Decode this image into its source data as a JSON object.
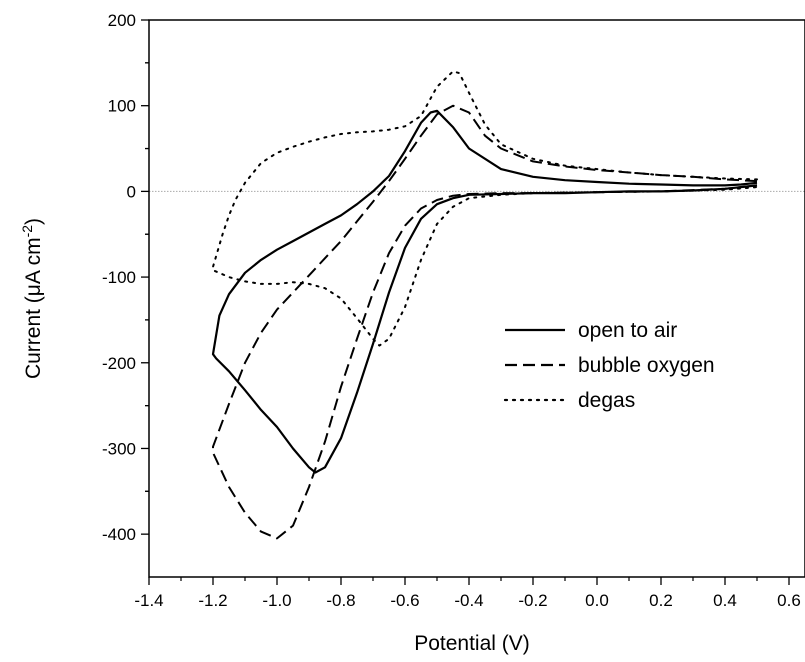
{
  "chart_data": {
    "type": "line",
    "xlabel": "Potential (V)",
    "ylabel_parts": {
      "pre": "Current (",
      "mu": "μ",
      "mid": "A cm",
      "sup": "-2",
      "post": ")"
    },
    "xlim": [
      -1.4,
      0.65
    ],
    "ylim": [
      -450,
      200
    ],
    "xticks": [
      -1.4,
      -1.2,
      -1.0,
      -0.8,
      -0.6,
      -0.4,
      -0.2,
      0.0,
      0.2,
      0.4,
      0.6
    ],
    "xtick_labels": [
      "-1.4",
      "-1.2",
      "-1.0",
      "-0.8",
      "-0.6",
      "-0.4",
      "-0.2",
      "0.0",
      "0.2",
      "0.4",
      "0.6"
    ],
    "yticks": [
      -400,
      -300,
      -200,
      -100,
      0,
      100,
      200
    ],
    "ytick_labels": [
      "-400",
      "-300",
      "-200",
      "-100",
      "0",
      "100",
      "200"
    ],
    "zero_line": true,
    "grid": false,
    "legend_position": "center-right",
    "series": [
      {
        "name": "open to air",
        "dash": "solid",
        "x": [
          0.5,
          0.45,
          0.4,
          0.3,
          0.2,
          0.1,
          0.0,
          -0.1,
          -0.2,
          -0.3,
          -0.4,
          -0.45,
          -0.5,
          -0.52,
          -0.55,
          -0.6,
          -0.65,
          -0.7,
          -0.75,
          -0.8,
          -0.85,
          -0.9,
          -0.95,
          -1.0,
          -1.05,
          -1.1,
          -1.15,
          -1.18,
          -1.2,
          -1.19,
          -1.15,
          -1.1,
          -1.05,
          -1.0,
          -0.95,
          -0.9,
          -0.88,
          -0.85,
          -0.8,
          -0.75,
          -0.7,
          -0.65,
          -0.6,
          -0.55,
          -0.5,
          -0.45,
          -0.4,
          -0.3,
          -0.2,
          -0.1,
          0.0,
          0.1,
          0.2,
          0.3,
          0.4,
          0.5
        ],
        "y": [
          10,
          8,
          7,
          7,
          8,
          9,
          11,
          13,
          17,
          26,
          50,
          75,
          94,
          92,
          80,
          47,
          18,
          0,
          -15,
          -28,
          -38,
          -48,
          -58,
          -68,
          -80,
          -95,
          -120,
          -145,
          -190,
          -195,
          -210,
          -232,
          -255,
          -275,
          -300,
          -322,
          -328,
          -322,
          -288,
          -235,
          -178,
          -118,
          -66,
          -32,
          -15,
          -8,
          -4,
          -3,
          -2,
          -2,
          -1,
          0,
          0,
          1,
          3,
          7
        ]
      },
      {
        "name": "bubble oxygen",
        "dash": "dashed",
        "x": [
          0.5,
          0.4,
          0.3,
          0.2,
          0.1,
          0.0,
          -0.1,
          -0.2,
          -0.3,
          -0.35,
          -0.4,
          -0.45,
          -0.5,
          -0.55,
          -0.6,
          -0.65,
          -0.7,
          -0.75,
          -0.8,
          -0.85,
          -0.9,
          -0.95,
          -1.0,
          -1.05,
          -1.1,
          -1.15,
          -1.2,
          -1.2,
          -1.15,
          -1.1,
          -1.05,
          -1.0,
          -0.95,
          -0.9,
          -0.85,
          -0.8,
          -0.75,
          -0.7,
          -0.65,
          -0.6,
          -0.55,
          -0.5,
          -0.45,
          -0.4,
          -0.3,
          -0.2,
          0.0,
          0.2,
          0.4,
          0.5
        ],
        "y": [
          12,
          14,
          17,
          19,
          22,
          25,
          29,
          35,
          50,
          65,
          92,
          100,
          90,
          65,
          38,
          12,
          -12,
          -35,
          -58,
          -78,
          -98,
          -118,
          -138,
          -165,
          -200,
          -248,
          -298,
          -305,
          -345,
          -375,
          -397,
          -405,
          -390,
          -345,
          -292,
          -228,
          -172,
          -118,
          -72,
          -40,
          -20,
          -10,
          -5,
          -3,
          -2,
          -2,
          -1,
          0,
          3,
          7
        ]
      },
      {
        "name": "degas",
        "dash": "dotted",
        "x": [
          0.5,
          0.4,
          0.3,
          0.2,
          0.1,
          0.0,
          -0.1,
          -0.2,
          -0.3,
          -0.35,
          -0.4,
          -0.43,
          -0.45,
          -0.5,
          -0.55,
          -0.6,
          -0.65,
          -0.7,
          -0.75,
          -0.8,
          -0.85,
          -0.9,
          -0.95,
          -1.0,
          -1.05,
          -1.1,
          -1.13,
          -1.15,
          -1.17,
          -1.2,
          -1.2,
          -1.15,
          -1.1,
          -1.05,
          -1.0,
          -0.95,
          -0.9,
          -0.85,
          -0.8,
          -0.75,
          -0.7,
          -0.68,
          -0.65,
          -0.6,
          -0.55,
          -0.5,
          -0.45,
          -0.4,
          -0.3,
          -0.2,
          0.0,
          0.2,
          0.4,
          0.5
        ],
        "y": [
          14,
          15,
          17,
          19,
          22,
          26,
          30,
          38,
          55,
          78,
          115,
          138,
          140,
          122,
          88,
          76,
          72,
          70,
          69,
          67,
          63,
          58,
          52,
          45,
          33,
          10,
          -10,
          -28,
          -50,
          -88,
          -92,
          -100,
          -105,
          -108,
          -108,
          -106,
          -108,
          -113,
          -125,
          -148,
          -172,
          -180,
          -172,
          -135,
          -80,
          -38,
          -18,
          -8,
          -4,
          -2,
          -1,
          0,
          2,
          5
        ]
      }
    ]
  }
}
